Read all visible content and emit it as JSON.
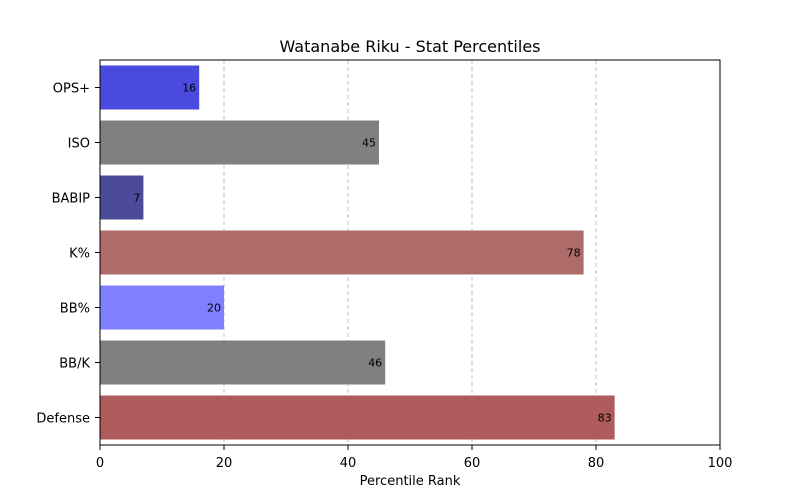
{
  "chart_data": {
    "type": "bar",
    "orientation": "horizontal",
    "title": "Watanabe Riku - Stat Percentiles",
    "xlabel": "Percentile Rank",
    "ylabel": "",
    "xlim": [
      0,
      100
    ],
    "xticks": [
      0,
      20,
      40,
      60,
      80,
      100
    ],
    "grid": "x-dashed",
    "categories": [
      "OPS+",
      "ISO",
      "BABIP",
      "K%",
      "BB%",
      "BB/K",
      "Defense"
    ],
    "values": [
      16,
      45,
      7,
      78,
      20,
      46,
      83
    ],
    "bar_colors": [
      "#4a4adf",
      "#808080",
      "#4b4b99",
      "#ad6b69",
      "#8080ff",
      "#808080",
      "#ad5b5b"
    ]
  }
}
